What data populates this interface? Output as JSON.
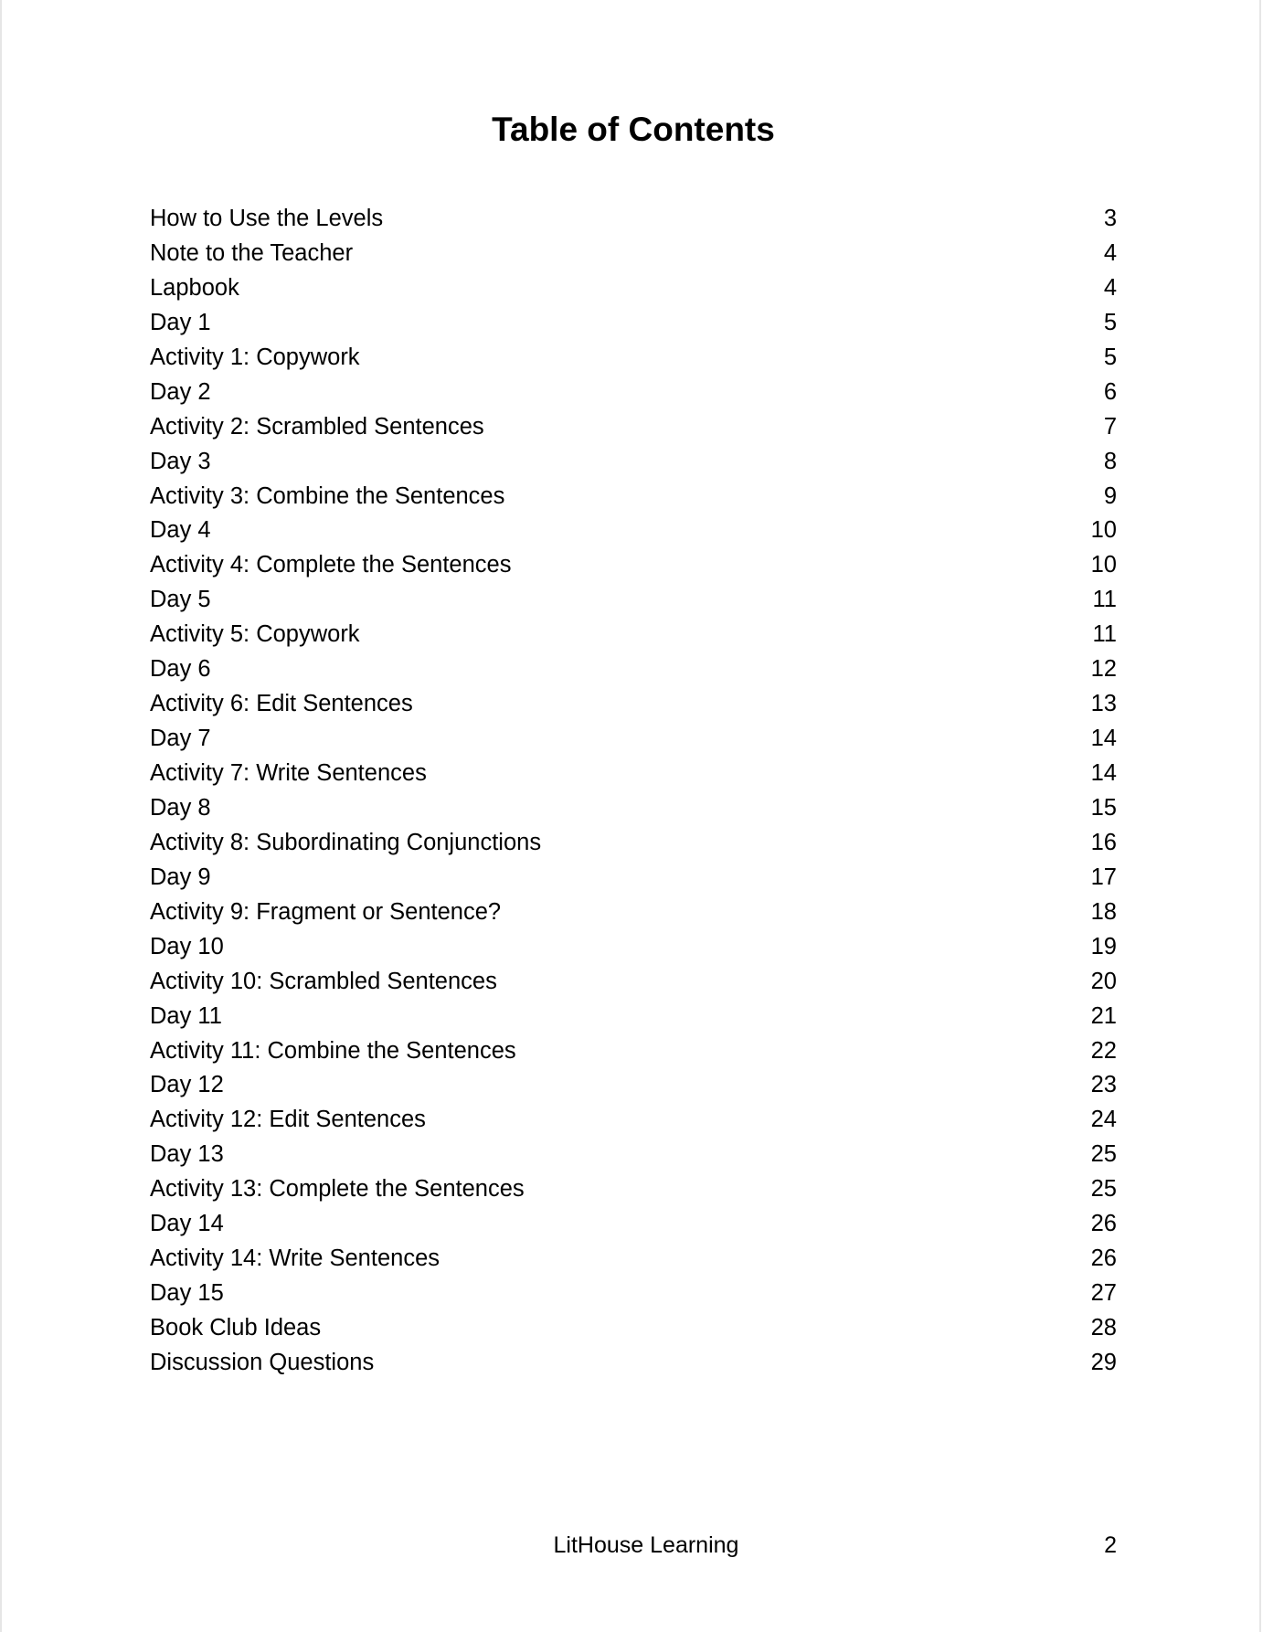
{
  "title": "Table of Contents",
  "entries": [
    {
      "label": "How to Use the Levels",
      "page": "3"
    },
    {
      "label": "Note to the Teacher",
      "page": "4"
    },
    {
      "label": "Lapbook",
      "page": "4"
    },
    {
      "label": "Day 1",
      "page": "5"
    },
    {
      "label": "Activity 1: Copywork",
      "page": "5"
    },
    {
      "label": "Day 2",
      "page": "6"
    },
    {
      "label": "Activity 2: Scrambled Sentences",
      "page": "7"
    },
    {
      "label": "Day 3",
      "page": "8"
    },
    {
      "label": "Activity 3: Combine the Sentences",
      "page": "9"
    },
    {
      "label": "Day 4",
      "page": "10"
    },
    {
      "label": "Activity 4: Complete the Sentences",
      "page": "10"
    },
    {
      "label": "Day 5",
      "page": "11"
    },
    {
      "label": "Activity 5: Copywork",
      "page": "11"
    },
    {
      "label": "Day 6",
      "page": "12"
    },
    {
      "label": "Activity 6: Edit Sentences",
      "page": "13"
    },
    {
      "label": "Day 7",
      "page": "14"
    },
    {
      "label": "Activity 7: Write Sentences",
      "page": "14"
    },
    {
      "label": "Day 8",
      "page": "15"
    },
    {
      "label": "Activity 8: Subordinating Conjunctions",
      "page": "16"
    },
    {
      "label": "Day 9",
      "page": "17"
    },
    {
      "label": "Activity 9: Fragment or Sentence?",
      "page": "18"
    },
    {
      "label": "Day 10",
      "page": "19"
    },
    {
      "label": "Activity 10: Scrambled Sentences",
      "page": "20"
    },
    {
      "label": "Day 11",
      "page": "21"
    },
    {
      "label": "Activity 11: Combine the Sentences",
      "page": "22"
    },
    {
      "label": "Day 12",
      "page": "23"
    },
    {
      "label": "Activity 12: Edit Sentences",
      "page": "24"
    },
    {
      "label": "Day 13",
      "page": "25"
    },
    {
      "label": "Activity 13: Complete the Sentences",
      "page": "25"
    },
    {
      "label": "Day 14",
      "page": "26"
    },
    {
      "label": "Activity 14: Write Sentences",
      "page": "26"
    },
    {
      "label": "Day 15",
      "page": "27"
    },
    {
      "label": "Book Club Ideas",
      "page": "28"
    },
    {
      "label": "Discussion Questions",
      "page": "29"
    }
  ],
  "footer": {
    "brand": "LitHouse Learning",
    "page_number": "2"
  }
}
